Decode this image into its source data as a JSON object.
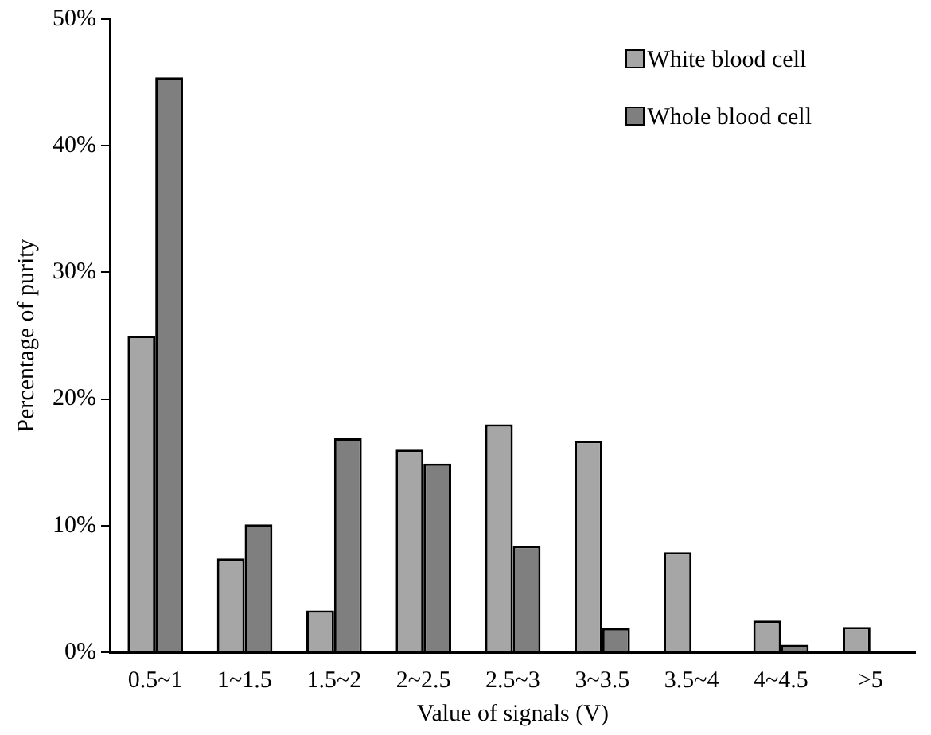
{
  "chart_data": {
    "type": "bar",
    "xlabel": "Value of signals (V)",
    "ylabel": "Percentage of purity",
    "categories": [
      "0.5~1",
      "1~1.5",
      "1.5~2",
      "2~2.5",
      "2.5~3",
      "3~3.5",
      "3.5~4",
      "4~4.5",
      ">5"
    ],
    "series": [
      {
        "name": "White blood cell",
        "color": "#a6a6a6",
        "values": [
          25.0,
          7.4,
          3.3,
          16.0,
          18.0,
          16.7,
          7.9,
          2.5,
          2.0
        ]
      },
      {
        "name": "Whole blood cell",
        "color": "#7f7f7f",
        "values": [
          45.4,
          10.1,
          16.9,
          14.9,
          8.4,
          1.9,
          0,
          0.6,
          0
        ]
      }
    ],
    "ylim": [
      0,
      50
    ],
    "yticks": [
      {
        "value": 0,
        "label": "0%"
      },
      {
        "value": 10,
        "label": "10%"
      },
      {
        "value": 20,
        "label": "20%"
      },
      {
        "value": 30,
        "label": "30%"
      },
      {
        "value": 40,
        "label": "40%"
      },
      {
        "value": 50,
        "label": "50%"
      }
    ],
    "grid": false,
    "legend": "top right"
  }
}
